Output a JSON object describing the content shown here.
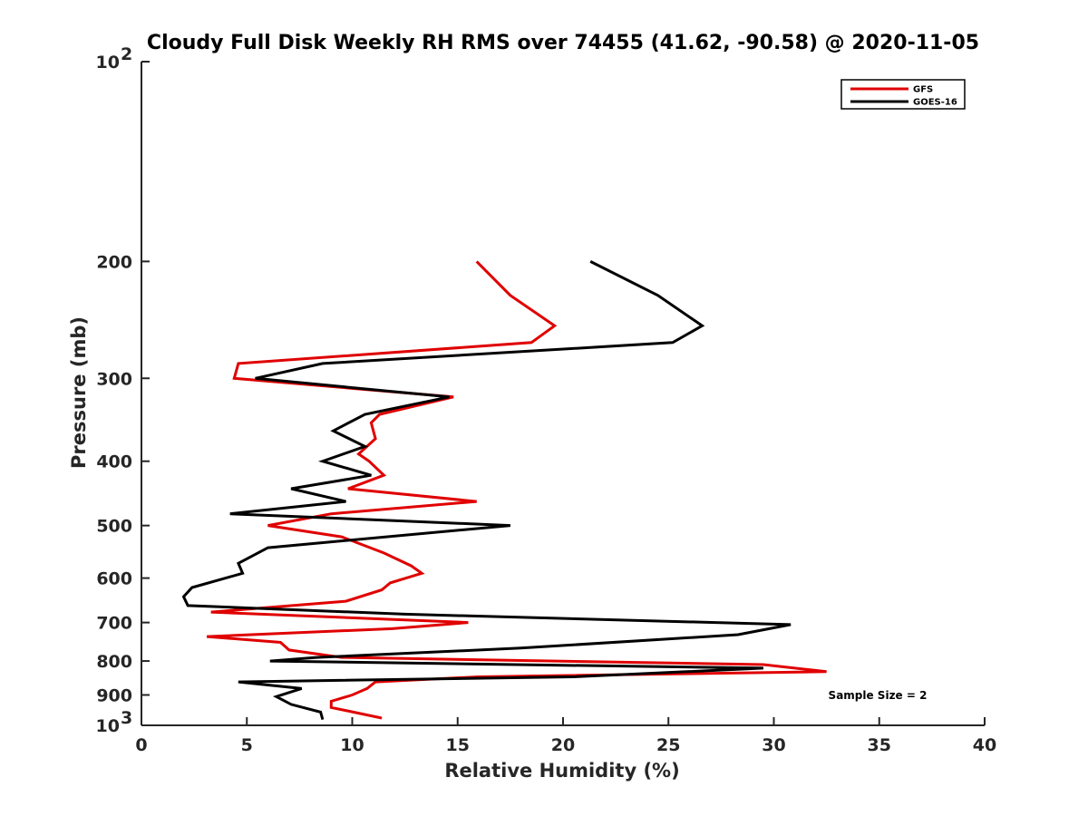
{
  "chart_data": {
    "type": "line",
    "title": "Cloudy Full Disk Weekly RH RMS over 74455 (41.62, -90.58) @ 2020-11-05",
    "xlabel": "Relative Humidity (%)",
    "ylabel": "Pressure (mb)",
    "xlim": [
      0,
      40
    ],
    "ylim": [
      100,
      1000
    ],
    "yscale": "log",
    "y_reversed": true,
    "x_ticks": [
      "0",
      "5",
      "10",
      "15",
      "20",
      "25",
      "30",
      "35",
      "40"
    ],
    "y_ticks": [
      {
        "value": 100,
        "label": "10",
        "sup": "2"
      },
      {
        "value": 200,
        "label": "200",
        "sup": ""
      },
      {
        "value": 300,
        "label": "300",
        "sup": ""
      },
      {
        "value": 400,
        "label": "400",
        "sup": ""
      },
      {
        "value": 500,
        "label": "500",
        "sup": ""
      },
      {
        "value": 600,
        "label": "600",
        "sup": ""
      },
      {
        "value": 700,
        "label": "700",
        "sup": ""
      },
      {
        "value": 800,
        "label": "800",
        "sup": ""
      },
      {
        "value": 900,
        "label": "900",
        "sup": ""
      },
      {
        "value": 1000,
        "label": "10",
        "sup": "3"
      }
    ],
    "grid": false,
    "legend_position": "top-right",
    "annotation": "Sample Size = 2",
    "series": [
      {
        "name": "GFS",
        "color": "#e00000",
        "points": [
          [
            15.9,
            200
          ],
          [
            17.5,
            225
          ],
          [
            19.6,
            250
          ],
          [
            18.5,
            265
          ],
          [
            4.6,
            285
          ],
          [
            4.4,
            300
          ],
          [
            14.8,
            320
          ],
          [
            11.3,
            340
          ],
          [
            10.9,
            350
          ],
          [
            11.1,
            370
          ],
          [
            10.3,
            390
          ],
          [
            10.8,
            400
          ],
          [
            11.5,
            420
          ],
          [
            9.8,
            440
          ],
          [
            15.9,
            460
          ],
          [
            9.0,
            480
          ],
          [
            6.0,
            500
          ],
          [
            9.5,
            520
          ],
          [
            11.5,
            550
          ],
          [
            12.8,
            575
          ],
          [
            13.3,
            590
          ],
          [
            11.8,
            610
          ],
          [
            11.4,
            625
          ],
          [
            9.7,
            650
          ],
          [
            3.3,
            675
          ],
          [
            15.5,
            700
          ],
          [
            11.9,
            715
          ],
          [
            3.1,
            735
          ],
          [
            6.6,
            750
          ],
          [
            7.0,
            770
          ],
          [
            9.5,
            790
          ],
          [
            29.5,
            810
          ],
          [
            32.5,
            830
          ],
          [
            16.0,
            845
          ],
          [
            11.1,
            860
          ],
          [
            10.7,
            880
          ],
          [
            10.0,
            900
          ],
          [
            9.0,
            920
          ],
          [
            9.0,
            940
          ],
          [
            11.4,
            975
          ]
        ]
      },
      {
        "name": "GOES-16",
        "color": "#000000",
        "points": [
          [
            21.3,
            200
          ],
          [
            24.5,
            225
          ],
          [
            26.6,
            250
          ],
          [
            25.2,
            265
          ],
          [
            8.6,
            285
          ],
          [
            5.4,
            300
          ],
          [
            14.6,
            320
          ],
          [
            10.6,
            340
          ],
          [
            9.1,
            360
          ],
          [
            10.6,
            380
          ],
          [
            8.6,
            400
          ],
          [
            10.9,
            420
          ],
          [
            7.1,
            440
          ],
          [
            9.7,
            460
          ],
          [
            4.2,
            480
          ],
          [
            17.5,
            500
          ],
          [
            6.0,
            540
          ],
          [
            4.6,
            570
          ],
          [
            4.8,
            590
          ],
          [
            2.4,
            620
          ],
          [
            2.0,
            640
          ],
          [
            2.2,
            660
          ],
          [
            12.5,
            680
          ],
          [
            30.8,
            705
          ],
          [
            28.3,
            730
          ],
          [
            18.0,
            765
          ],
          [
            8.3,
            790
          ],
          [
            6.1,
            800
          ],
          [
            29.5,
            820
          ],
          [
            20.5,
            845
          ],
          [
            4.6,
            860
          ],
          [
            7.6,
            880
          ],
          [
            6.4,
            905
          ],
          [
            7.1,
            930
          ],
          [
            8.5,
            955
          ],
          [
            8.6,
            980
          ]
        ]
      }
    ]
  }
}
